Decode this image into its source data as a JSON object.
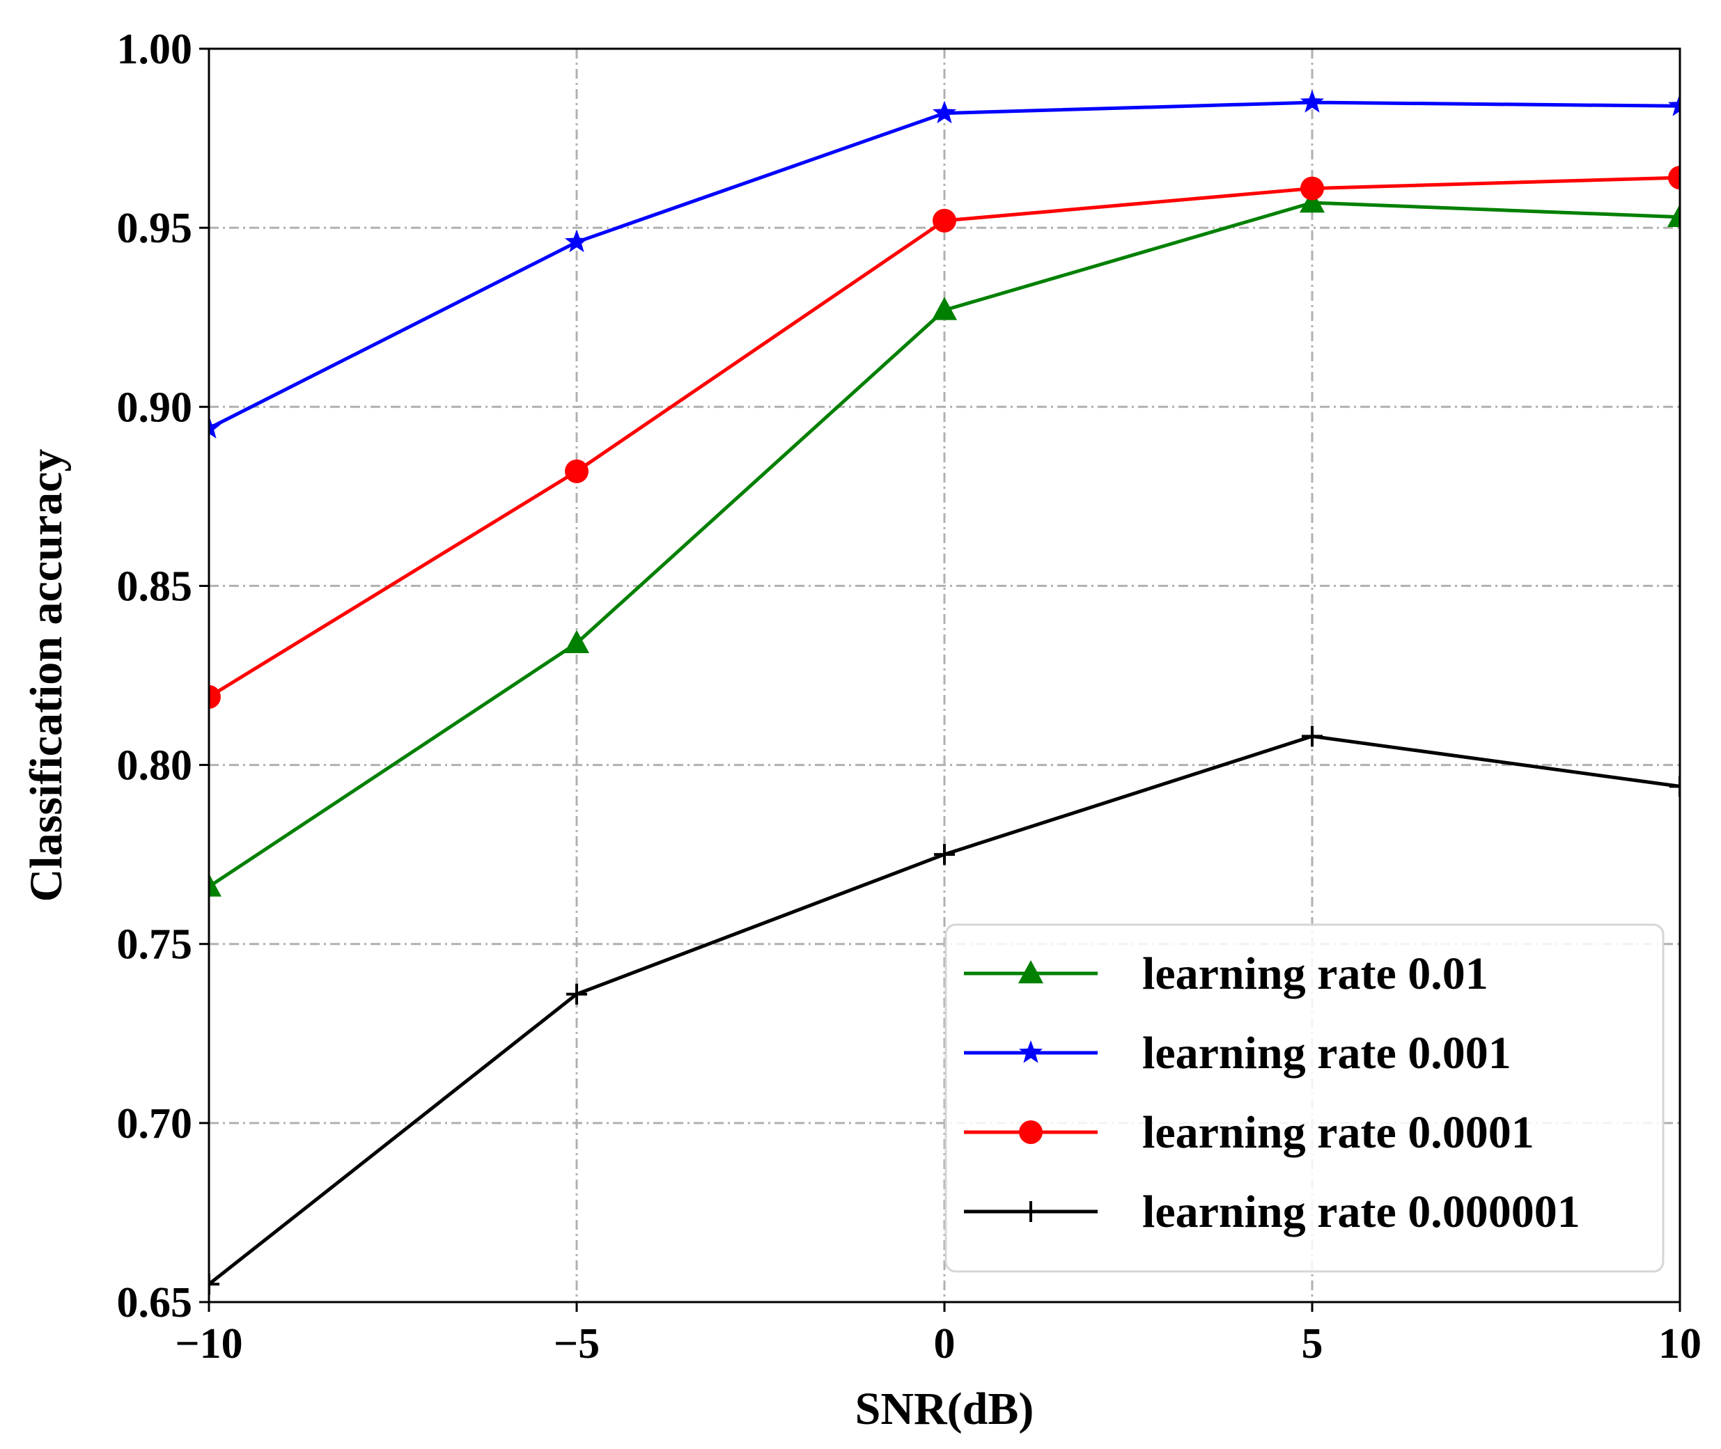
{
  "chart_data": {
    "type": "line",
    "title": "",
    "xlabel": "SNR(dB)",
    "ylabel": "Classification accuracy",
    "x": [
      -10,
      -5,
      0,
      5,
      10
    ],
    "xticks": [
      "−10",
      "−5",
      "0",
      "5",
      "10"
    ],
    "xlim": [
      -10,
      10
    ],
    "yticks": [
      "0.65",
      "0.70",
      "0.75",
      "0.80",
      "0.85",
      "0.90",
      "0.95",
      "1.00"
    ],
    "ylim": [
      0.65,
      1.0
    ],
    "grid": true,
    "legend_position": "lower-right",
    "series": [
      {
        "name": "learning rate 0.01",
        "color": "#008000",
        "marker": "triangle",
        "values": [
          0.766,
          0.834,
          0.927,
          0.957,
          0.953
        ]
      },
      {
        "name": "learning rate 0.001",
        "color": "#0000ff",
        "marker": "star",
        "values": [
          0.894,
          0.946,
          0.982,
          0.985,
          0.984
        ]
      },
      {
        "name": "learning rate 0.0001",
        "color": "#ff0000",
        "marker": "circle",
        "values": [
          0.819,
          0.882,
          0.952,
          0.961,
          0.964
        ]
      },
      {
        "name": "learning rate 0.000001",
        "color": "#000000",
        "marker": "plus",
        "values": [
          0.655,
          0.736,
          0.775,
          0.808,
          0.794
        ]
      }
    ]
  }
}
